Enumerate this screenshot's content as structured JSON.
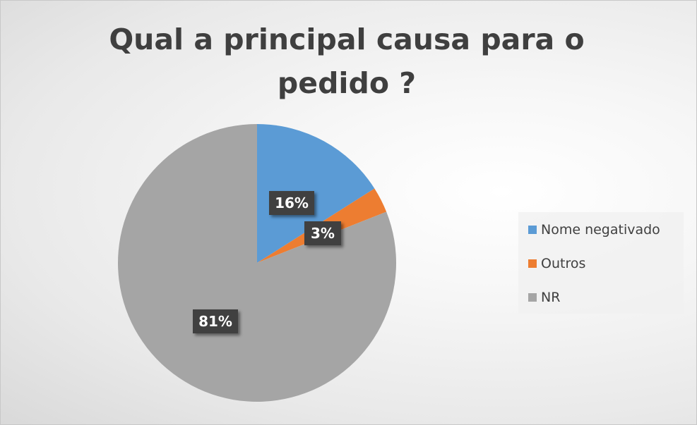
{
  "chart_data": {
    "type": "pie",
    "title": "Qual a principal causa para o pedido ?",
    "categories": [
      "Nome negativado",
      "Outros",
      "NR"
    ],
    "values": [
      16,
      3,
      81
    ],
    "data_labels": [
      "16%",
      "3%",
      "81%"
    ],
    "colors": [
      "#5b9bd5",
      "#ed7d31",
      "#a5a5a5"
    ],
    "legend": {
      "position": "right",
      "entries": [
        "Nome negativado",
        "Outros",
        "NR"
      ]
    },
    "start_angle_deg": 0,
    "direction": "clockwise"
  }
}
